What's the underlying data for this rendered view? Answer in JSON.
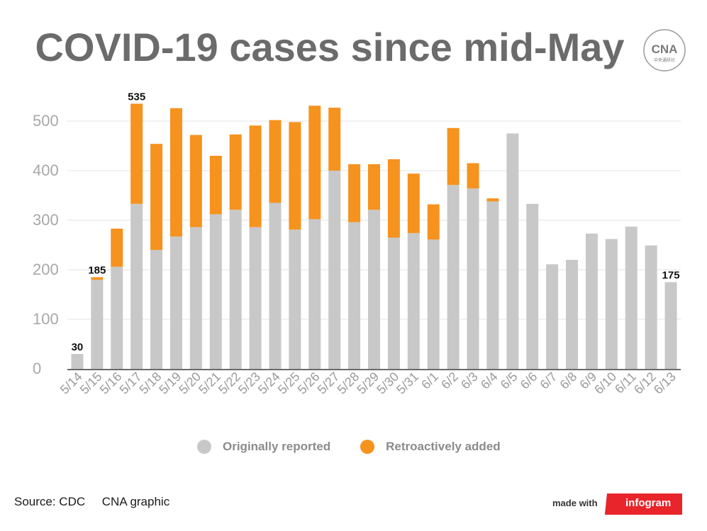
{
  "title": "COVID-19 cases since mid-May",
  "logo": {
    "text": "CNA",
    "subtext": "中央通訊社",
    "icon": "cna-logo"
  },
  "colors": {
    "originally": "#c8c8c8",
    "retro": "#f6921e",
    "title": "#6b6b6b",
    "brand": "#e8252b"
  },
  "legend": {
    "originally": "Originally reported",
    "retro": "Retroactively added"
  },
  "footer": {
    "source": "Source: CDC",
    "graphic": "CNA graphic",
    "made_with": "made with",
    "brand": "infogram"
  },
  "chart_data": {
    "type": "bar",
    "stacked": true,
    "categories": [
      "5/14",
      "5/15",
      "5/16",
      "5/17",
      "5/18",
      "5/19",
      "5/20",
      "5/21",
      "5/22",
      "5/23",
      "5/24",
      "5/25",
      "5/26",
      "5/27",
      "5/28",
      "5/29",
      "5/30",
      "5/31",
      "6/1",
      "6/2",
      "6/3",
      "6/4",
      "6/5",
      "6/6",
      "6/7",
      "6/8",
      "6/9",
      "6/10",
      "6/11",
      "6/12",
      "6/13"
    ],
    "series": [
      {
        "name": "Originally reported",
        "values": [
          30,
          180,
          206,
          333,
          240,
          267,
          286,
          312,
          321,
          286,
          335,
          281,
          302,
          400,
          296,
          321,
          265,
          274,
          261,
          371,
          364,
          338,
          475,
          333,
          211,
          220,
          273,
          262,
          287,
          249,
          175
        ]
      },
      {
        "name": "Retroactively added",
        "values": [
          0,
          5,
          77,
          202,
          214,
          259,
          186,
          118,
          152,
          205,
          167,
          217,
          229,
          127,
          117,
          92,
          158,
          120,
          71,
          115,
          51,
          6,
          0,
          0,
          0,
          0,
          0,
          0,
          0,
          0,
          0
        ]
      }
    ],
    "data_labels": [
      {
        "category": "5/14",
        "text": "30"
      },
      {
        "category": "5/15",
        "text": "185"
      },
      {
        "category": "5/17",
        "text": "535"
      },
      {
        "category": "6/13",
        "text": "175"
      }
    ],
    "ylim": [
      0,
      500
    ],
    "yticks": [
      0,
      100,
      200,
      300,
      400,
      500
    ],
    "grid": true,
    "legend_position": "bottom"
  }
}
